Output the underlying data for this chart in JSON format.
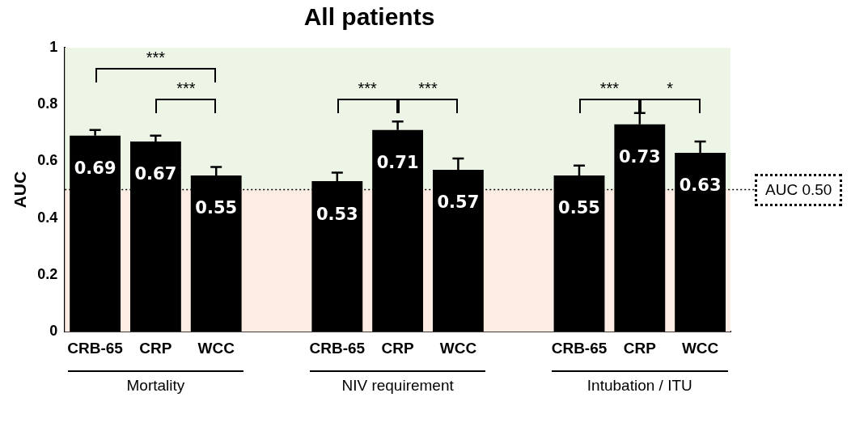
{
  "chart_data": {
    "type": "bar",
    "title": "All patients",
    "ylabel": "AUC",
    "categories": [
      "CRB-65",
      "CRP",
      "WCC",
      null,
      "CRB-65",
      "CRP",
      "WCC",
      null,
      "CRB-65",
      "CRP",
      "WCC"
    ],
    "values": [
      0.69,
      0.67,
      0.55,
      null,
      0.53,
      0.71,
      0.57,
      null,
      0.55,
      0.73,
      0.63
    ],
    "errors": [
      [
        0.69,
        0.71
      ],
      [
        0.67,
        0.69
      ],
      [
        0.55,
        0.58
      ],
      null,
      [
        0.53,
        0.56
      ],
      [
        0.71,
        0.74
      ],
      [
        0.57,
        0.61
      ],
      null,
      [
        0.55,
        0.585
      ],
      [
        0.73,
        0.77
      ],
      [
        0.63,
        0.67
      ]
    ],
    "color": "#000000",
    "data_labels": true,
    "ylim": [
      0,
      1
    ],
    "yticks": [
      0,
      0.2,
      0.4,
      0.6,
      0.8,
      1
    ],
    "grid": false,
    "legend": false,
    "bands": [
      {
        "axis": "y",
        "from": 0.5,
        "to": 1,
        "color": "#edf5e6"
      },
      {
        "axis": "y",
        "from": 0,
        "to": 0.5,
        "color": "#fcece4"
      }
    ],
    "ref_lines": [
      {
        "axis": "y",
        "value": 0.5,
        "label": "AUC 0.50",
        "color": "#000000",
        "line_style": "dotted"
      }
    ],
    "annotations": [
      "***",
      "***",
      "***",
      "***",
      "***",
      "*",
      "Mortality",
      "NIV requirement",
      "Intubation / ITU"
    ]
  }
}
